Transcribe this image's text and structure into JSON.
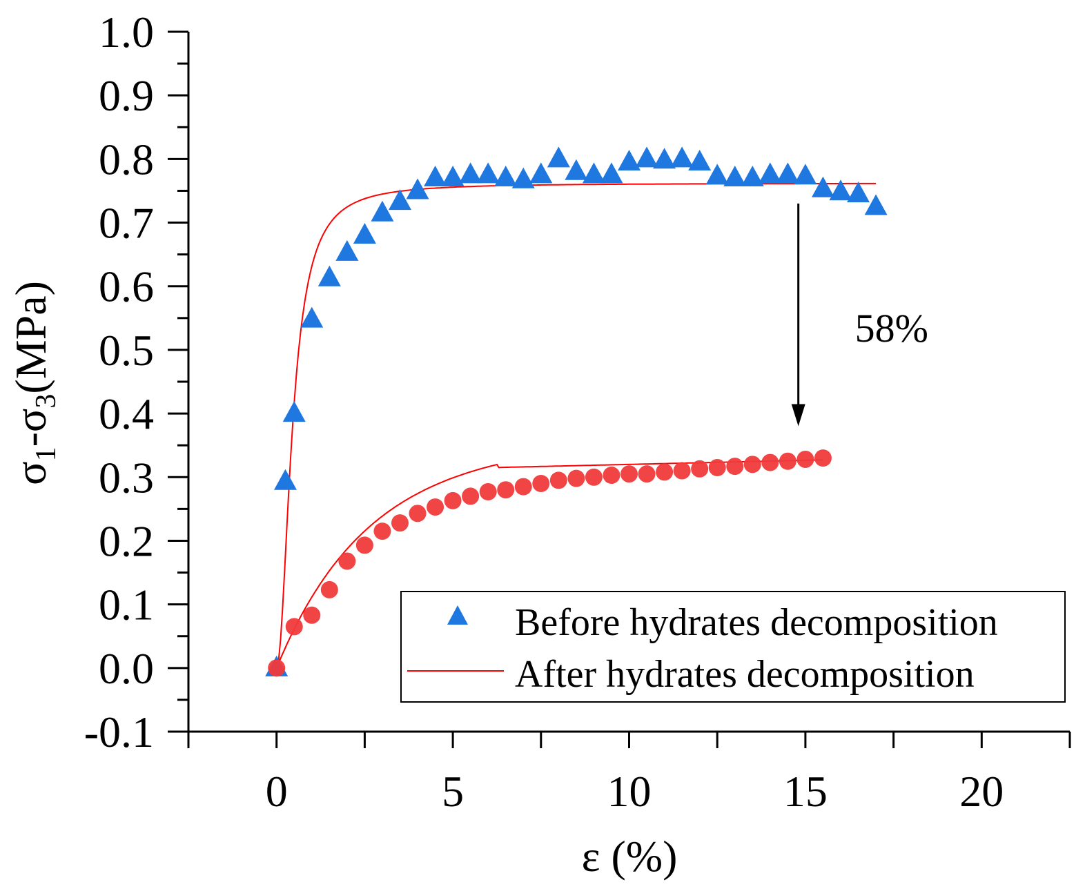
{
  "chart_data": {
    "type": "scatter",
    "title": "",
    "xlabel": "ε (%)",
    "ylabel": {
      "sigma": "σ",
      "sub1": "1",
      "dash": "-σ",
      "sub3": "3",
      "unit": "(MPa)"
    },
    "xlim": [
      -2.5,
      22.5
    ],
    "ylim": [
      -0.1,
      1.0
    ],
    "x_ticks": [
      0,
      5,
      10,
      15,
      20
    ],
    "x_tick_labels": [
      "0",
      "5",
      "10",
      "15",
      "20"
    ],
    "y_ticks": [
      -0.1,
      0.0,
      0.1,
      0.2,
      0.3,
      0.4,
      0.5,
      0.6,
      0.7,
      0.8,
      0.9,
      1.0
    ],
    "y_tick_labels": [
      "-0.1",
      "0.0",
      "0.1",
      "0.2",
      "0.3",
      "0.4",
      "0.5",
      "0.6",
      "0.7",
      "0.8",
      "0.9",
      "1.0"
    ],
    "grid": false,
    "legend_position": "bottom-right",
    "series": [
      {
        "name": "Before hydrates decomposition",
        "marker": "triangle",
        "color": "#1f77e0",
        "x": [
          0,
          0.25,
          0.5,
          1.0,
          1.5,
          2.0,
          2.5,
          3.0,
          3.5,
          4.0,
          4.5,
          5.0,
          5.5,
          6.0,
          6.5,
          7.0,
          7.5,
          8.0,
          8.5,
          9.0,
          9.5,
          10.0,
          10.5,
          11.0,
          11.5,
          12.0,
          12.5,
          13.0,
          13.5,
          14.0,
          14.5,
          15.0,
          15.5,
          16.0,
          16.5,
          17.0
        ],
        "y": [
          0.0,
          0.293,
          0.4,
          0.548,
          0.613,
          0.653,
          0.68,
          0.715,
          0.733,
          0.75,
          0.77,
          0.77,
          0.775,
          0.775,
          0.77,
          0.767,
          0.775,
          0.8,
          0.78,
          0.775,
          0.775,
          0.795,
          0.8,
          0.798,
          0.8,
          0.795,
          0.773,
          0.77,
          0.77,
          0.775,
          0.775,
          0.773,
          0.753,
          0.748,
          0.745,
          0.725
        ]
      },
      {
        "name": "After hydrates decomposition",
        "marker": "circle",
        "color": "#f03a3a",
        "x": [
          0,
          0.5,
          1.0,
          1.5,
          2.0,
          2.5,
          3.0,
          3.5,
          4.0,
          4.5,
          5.0,
          5.5,
          6.0,
          6.5,
          7.0,
          7.5,
          8.0,
          8.5,
          9.0,
          9.5,
          10.0,
          10.5,
          11.0,
          11.5,
          12.0,
          12.5,
          13.0,
          13.5,
          14.0,
          14.5,
          15.0,
          15.5
        ],
        "y": [
          0.0,
          0.065,
          0.083,
          0.123,
          0.168,
          0.193,
          0.215,
          0.228,
          0.243,
          0.253,
          0.263,
          0.27,
          0.277,
          0.28,
          0.285,
          0.29,
          0.295,
          0.298,
          0.3,
          0.303,
          0.305,
          0.305,
          0.308,
          0.31,
          0.313,
          0.315,
          0.317,
          0.32,
          0.323,
          0.325,
          0.328,
          0.33
        ]
      }
    ],
    "fit_lines": [
      {
        "name": "fit-before",
        "color": "#ff0000",
        "x_start": 0,
        "x_end": 17,
        "plateau": 0.762,
        "rate": 2.2,
        "shape": "rational-power",
        "power": 2
      },
      {
        "name": "fit-after",
        "color": "#ff0000",
        "x_start": 0,
        "x_end": 15.5,
        "a": 0.0027,
        "b": 0.4,
        "c": 0.33,
        "shape": "logarithmic-saturation"
      }
    ],
    "annotations": [
      {
        "text": "58%",
        "arrow_from": [
          14.8,
          0.73
        ],
        "arrow_to": [
          14.8,
          0.38
        ]
      }
    ]
  }
}
